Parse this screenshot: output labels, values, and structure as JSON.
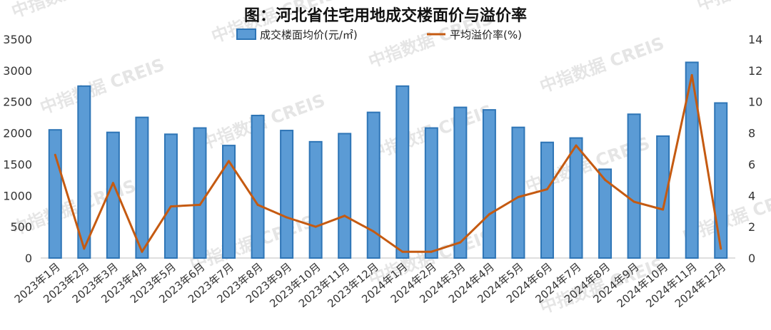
{
  "chart_data": {
    "type": "bar+line",
    "title": "图：河北省住宅用地成交楼面价与溢价率",
    "categories": [
      "2023年1月",
      "2023年2月",
      "2023年3月",
      "2023年4月",
      "2023年5月",
      "2023年6月",
      "2023年7月",
      "2023年8月",
      "2023年9月",
      "2023年10月",
      "2023年11月",
      "2023年12月",
      "2024年1月",
      "2024年2月",
      "2024年3月",
      "2024年4月",
      "2024年5月",
      "2024年6月",
      "2024年7月",
      "2024年8月",
      "2024年9月",
      "2024年10月",
      "2024年11月",
      "2024年12月"
    ],
    "series": [
      {
        "name": "成交楼面均价(元/㎡)",
        "type": "bar",
        "axis": "left",
        "color": "#5b9bd5",
        "values": [
          2050,
          2750,
          2010,
          2250,
          1980,
          2080,
          1800,
          2280,
          2040,
          1860,
          1990,
          2330,
          2750,
          2080,
          2410,
          2370,
          2090,
          1850,
          1920,
          1420,
          2300,
          1950,
          3130,
          2480
        ]
      },
      {
        "name": "平均溢价率(%)",
        "type": "line",
        "axis": "right",
        "color": "#c55a11",
        "values": [
          6.6,
          0.6,
          4.8,
          0.4,
          3.3,
          3.4,
          6.2,
          3.4,
          2.6,
          2.0,
          2.7,
          1.7,
          0.4,
          0.4,
          1.0,
          2.8,
          3.9,
          4.4,
          7.2,
          5.0,
          3.6,
          3.1,
          11.7,
          0.6
        ]
      }
    ],
    "yaxis_left": {
      "min": 0,
      "max": 3500,
      "ticks": [
        "0",
        "500",
        "1000",
        "1500",
        "2000",
        "2500",
        "3000",
        "3500"
      ]
    },
    "yaxis_right": {
      "min": 0,
      "max": 14,
      "ticks": [
        "0",
        "2",
        "4",
        "6",
        "8",
        "10",
        "12",
        "14"
      ]
    },
    "legend_placement": "top-center",
    "grid": false,
    "watermark": "中指数据 CREIS"
  }
}
